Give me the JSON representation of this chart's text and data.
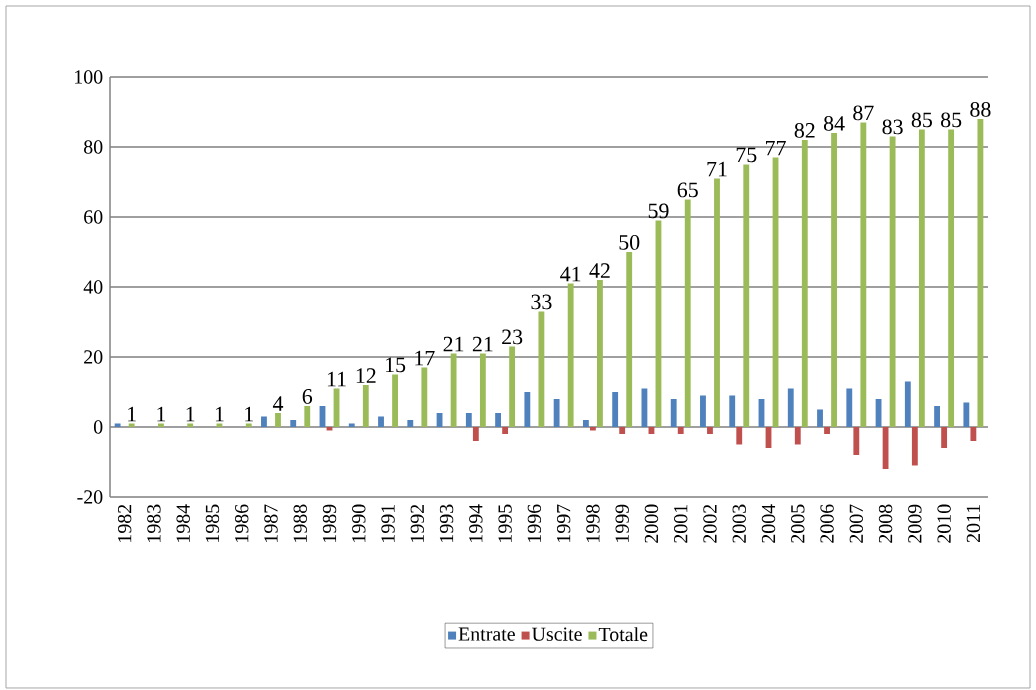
{
  "chart_data": {
    "type": "bar",
    "categories": [
      "1982",
      "1983",
      "1984",
      "1985",
      "1986",
      "1987",
      "1988",
      "1989",
      "1990",
      "1991",
      "1992",
      "1993",
      "1994",
      "1995",
      "1996",
      "1997",
      "1998",
      "1999",
      "2000",
      "2001",
      "2002",
      "2003",
      "2004",
      "2005",
      "2006",
      "2007",
      "2008",
      "2009",
      "2010",
      "2011"
    ],
    "series": [
      {
        "name": "Entrate",
        "color": "#4f81bd",
        "values": [
          1,
          0,
          0,
          0,
          0,
          3,
          2,
          6,
          1,
          3,
          2,
          4,
          4,
          4,
          10,
          8,
          2,
          10,
          11,
          8,
          9,
          9,
          8,
          11,
          5,
          11,
          8,
          13,
          6,
          7
        ]
      },
      {
        "name": "Uscite",
        "color": "#c0504d",
        "values": [
          0,
          0,
          0,
          0,
          0,
          0,
          0,
          -1,
          0,
          0,
          0,
          0,
          -4,
          -2,
          0,
          0,
          -1,
          -2,
          -2,
          -2,
          -2,
          -5,
          -6,
          -5,
          -2,
          -8,
          -12,
          -11,
          -6,
          -4
        ]
      },
      {
        "name": "Totale",
        "color": "#9bbb59",
        "values": [
          1,
          1,
          1,
          1,
          1,
          4,
          6,
          11,
          12,
          15,
          17,
          21,
          21,
          23,
          33,
          41,
          42,
          50,
          59,
          65,
          71,
          75,
          77,
          82,
          84,
          87,
          83,
          85,
          85,
          88
        ],
        "value_labels": [
          "1",
          "1",
          "1",
          "1",
          "1",
          "4",
          "6",
          "11",
          "12",
          "15",
          "17",
          "21",
          "21",
          "23",
          "33",
          "41",
          "42",
          "50",
          "59",
          "65",
          "71",
          "75",
          "77",
          "82",
          "84",
          "87",
          "83",
          "85",
          "85",
          "88"
        ]
      }
    ],
    "ylim": [
      -20,
      100
    ],
    "yticks": [
      -20,
      0,
      20,
      40,
      60,
      80,
      100
    ],
    "grid": "y",
    "legend": "bottom"
  }
}
